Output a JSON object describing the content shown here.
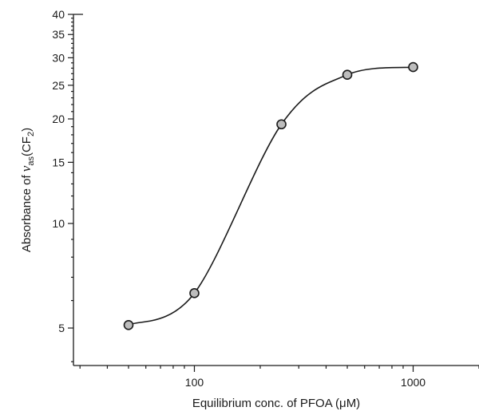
{
  "chart_data": {
    "type": "scatter",
    "xlabel": "Equilibrium conc. of PFOA (μM)",
    "ylabel_main": "Absorbance of ",
    "ylabel_nu": "ν",
    "ylabel_sub1": "as",
    "ylabel_mid": "(CF",
    "ylabel_sub2": "2",
    "ylabel_end": ")",
    "x_scale": "log",
    "y_scale": "log",
    "xlim": [
      28,
      2000
    ],
    "ylim": [
      3.9,
      40
    ],
    "x_tick_labels": [
      "100",
      "1000"
    ],
    "y_tick_labels": [
      "5",
      "10",
      "15",
      "20",
      "25",
      "30",
      "35",
      "40"
    ],
    "series": [
      {
        "x": [
          50,
          100,
          250,
          500,
          1000
        ],
        "y": [
          5.1,
          6.3,
          19.3,
          26.8,
          28.2
        ]
      }
    ],
    "fit_curve": "sigmoid",
    "grid": false,
    "marker_fill": "#bdbdbd",
    "line_color": "#1a1a1a"
  }
}
